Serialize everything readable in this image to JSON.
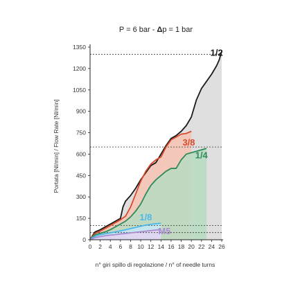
{
  "chart_data": {
    "type": "area",
    "title_parts": [
      "P = 6 bar - ",
      "Δ",
      "p = 1 bar"
    ],
    "xlabel": "n° giri spillo di regolazione / n° of needle turns",
    "ylabel": "Portata [Nl/min] / Flow Rate [Nl/min]",
    "xlim": [
      0,
      26
    ],
    "ylim": [
      0,
      1350
    ],
    "xticks": [
      0,
      2,
      4,
      6,
      8,
      10,
      12,
      14,
      16,
      18,
      20,
      22,
      24,
      26
    ],
    "yticks": [
      0,
      150,
      300,
      450,
      600,
      750,
      900,
      1050,
      1200,
      1350
    ],
    "reference_lines": [
      1300,
      650,
      100,
      50
    ],
    "series": [
      {
        "name": "1/2",
        "color": "#1a1a1a",
        "fill": "#d9d9d9",
        "label_pos": [
          25,
          1290
        ],
        "x": [
          0,
          0.5,
          1,
          2,
          3,
          4,
          5,
          6,
          6.5,
          7,
          8,
          9,
          10,
          11,
          12,
          13,
          14,
          15,
          16,
          17,
          18,
          19,
          20,
          21,
          22,
          23,
          24,
          25,
          25.5,
          26
        ],
        "y": [
          0,
          30,
          55,
          70,
          90,
          110,
          130,
          150,
          230,
          270,
          310,
          360,
          420,
          470,
          520,
          540,
          600,
          660,
          710,
          730,
          760,
          800,
          860,
          980,
          1060,
          1110,
          1160,
          1220,
          1260,
          1320
        ]
      },
      {
        "name": "3/8",
        "color": "#d94a2b",
        "fill": "#f7c3b4",
        "label_pos": [
          19.5,
          660
        ],
        "x": [
          0,
          0.5,
          1,
          2,
          3,
          4,
          5,
          6,
          7,
          8,
          9,
          10,
          11,
          12,
          13,
          14,
          15,
          16,
          17,
          18,
          19,
          20
        ],
        "y": [
          0,
          25,
          45,
          60,
          80,
          100,
          120,
          140,
          165,
          230,
          320,
          410,
          480,
          530,
          560,
          580,
          650,
          700,
          720,
          740,
          745,
          760
        ]
      },
      {
        "name": "1/4",
        "color": "#2e8b57",
        "fill": "#b7dcc2",
        "label_pos": [
          22,
          570
        ],
        "x": [
          0,
          0.5,
          1,
          2,
          3,
          4,
          5,
          6,
          7,
          8,
          9,
          10,
          11,
          12,
          13,
          14,
          15,
          16,
          17,
          18,
          19,
          20,
          21,
          22,
          23
        ],
        "y": [
          0,
          20,
          35,
          45,
          55,
          70,
          90,
          110,
          130,
          160,
          200,
          250,
          320,
          380,
          420,
          450,
          480,
          500,
          500,
          560,
          600,
          610,
          620,
          630,
          640
        ]
      },
      {
        "name": "1/8",
        "color": "#4db8e8",
        "fill": "#c6e8f6",
        "label_pos": [
          11,
          135
        ],
        "x": [
          0,
          0.5,
          1,
          2,
          3,
          4,
          5,
          6,
          7,
          8,
          9,
          10,
          11,
          12,
          13,
          14
        ],
        "y": [
          0,
          15,
          25,
          35,
          42,
          48,
          55,
          62,
          70,
          78,
          86,
          95,
          102,
          108,
          112,
          115
        ]
      },
      {
        "name": "M5",
        "color": "#a98bcf",
        "fill": "#e3d3f2",
        "label_pos": [
          14.7,
          40
        ],
        "x": [
          0,
          1,
          2,
          3,
          4,
          5,
          6,
          7,
          8,
          9,
          10,
          11,
          12,
          13,
          14
        ],
        "y": [
          0,
          15,
          22,
          28,
          32,
          36,
          40,
          44,
          48,
          52,
          56,
          60,
          64,
          68,
          72
        ]
      }
    ]
  }
}
